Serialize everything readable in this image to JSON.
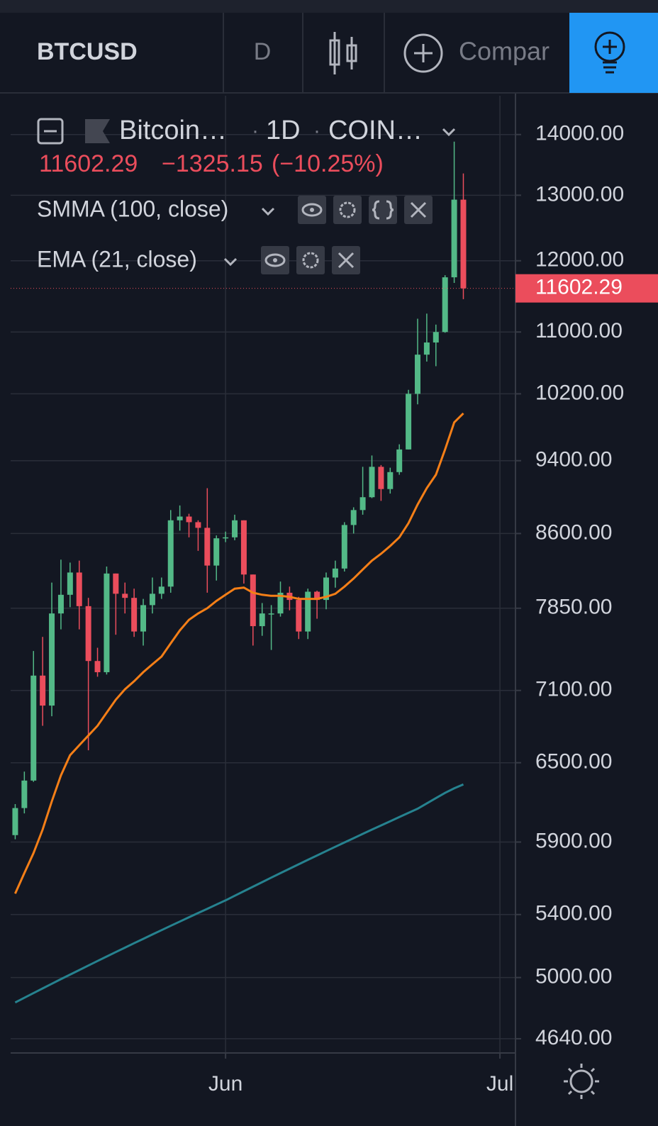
{
  "toolbar": {
    "symbol": "BTCUSD",
    "interval": "D",
    "compare": "Compar"
  },
  "legend": {
    "name": "Bitcoin…",
    "interval": "1D",
    "exchange": "COIN…",
    "change": "−1325.15",
    "change_pct": "(−10.25%)"
  },
  "chart_data": {
    "type": "candlestick",
    "open": [
      5950,
      6150,
      6360,
      7230,
      6970,
      7800,
      7980,
      8200,
      7870,
      7360,
      7260,
      8190,
      7990,
      7950,
      7630,
      7880,
      7990,
      8060,
      8740,
      8780,
      8720,
      8660,
      8270,
      8550,
      8560,
      8740,
      8180,
      7680,
      7800,
      7800,
      8000,
      7930,
      7630,
      8010,
      7930,
      8150,
      8240,
      8690,
      8850,
      8990,
      9330,
      9080,
      9270,
      9530,
      10200,
      10700,
      10860,
      11000,
      11760,
      12930
    ],
    "high": [
      6180,
      6430,
      7450,
      7580,
      8100,
      8330,
      8300,
      8320,
      7950,
      7480,
      8260,
      8190,
      8100,
      8040,
      7940,
      8150,
      8150,
      8850,
      8900,
      8810,
      8740,
      9090,
      8580,
      8620,
      8800,
      8740,
      8180,
      7900,
      7880,
      8110,
      8060,
      7960,
      8040,
      8020,
      8200,
      8320,
      8720,
      8880,
      9330,
      9460,
      9350,
      9320,
      9590,
      10250,
      11180,
      11250,
      11100,
      11790,
      13880,
      13350
    ],
    "low": [
      5920,
      6110,
      6350,
      6800,
      6880,
      7650,
      7860,
      7650,
      6600,
      7220,
      7240,
      7600,
      7800,
      7580,
      7500,
      7800,
      7940,
      8000,
      8630,
      8560,
      8420,
      8000,
      8120,
      8510,
      8530,
      8090,
      7500,
      7590,
      7460,
      7770,
      7830,
      7560,
      7560,
      7750,
      7840,
      8050,
      8210,
      8600,
      8800,
      8980,
      8950,
      9030,
      9240,
      9530,
      10070,
      10610,
      10550,
      10990,
      11680,
      11450
    ],
    "close": [
      6150,
      6360,
      7230,
      6970,
      7800,
      7980,
      8200,
      7870,
      7360,
      7260,
      8190,
      7990,
      7950,
      7630,
      7880,
      7990,
      8060,
      8740,
      8780,
      8720,
      8660,
      8270,
      8550,
      8560,
      8740,
      8180,
      7680,
      7800,
      7800,
      8000,
      7930,
      7630,
      8010,
      7930,
      8150,
      8240,
      8690,
      8850,
      8990,
      9330,
      9080,
      9270,
      9530,
      10200,
      10700,
      10860,
      11000,
      11760,
      12930,
      11602.29
    ],
    "up_color": "#53b987",
    "down_color": "#eb4d5c",
    "series": [
      {
        "name": "SMMA (100, close)",
        "color": "#26828f",
        "values": [
          4850,
          4878,
          4906,
          4934,
          4962,
          4990,
          5018,
          5046,
          5074,
          5102,
          5130,
          5158,
          5186,
          5214,
          5242,
          5270,
          5298,
          5326,
          5354,
          5382,
          5410,
          5438,
          5466,
          5494,
          5525,
          5556,
          5587,
          5618,
          5649,
          5680,
          5711,
          5742,
          5773,
          5804,
          5835,
          5866,
          5897,
          5928,
          5959,
          5990,
          6021,
          6052,
          6083,
          6114,
          6145,
          6185,
          6225,
          6265,
          6300,
          6330
        ]
      },
      {
        "name": "EMA (21, close)",
        "color": "#f57f17",
        "values": [
          5540,
          5680,
          5820,
          5990,
          6200,
          6400,
          6560,
          6640,
          6720,
          6800,
          6910,
          7020,
          7110,
          7180,
          7260,
          7330,
          7400,
          7520,
          7640,
          7740,
          7800,
          7850,
          7920,
          7980,
          8040,
          8050,
          8000,
          7980,
          7970,
          7970,
          7960,
          7940,
          7940,
          7940,
          7960,
          7990,
          8060,
          8140,
          8230,
          8320,
          8390,
          8470,
          8560,
          8710,
          8910,
          9090,
          9240,
          9530,
          9850,
          9960
        ]
      }
    ],
    "xlim": [
      -0.5,
      54.7
    ],
    "xticks": [
      {
        "value": 23,
        "label": "Jun"
      },
      {
        "value": 53,
        "label": "Jul"
      }
    ],
    "ylim": [
      4560,
      14680
    ],
    "yticks": [
      {
        "value": 4640,
        "label": "4640.00"
      },
      {
        "value": 5000,
        "label": "5000.00"
      },
      {
        "value": 5400,
        "label": "5400.00"
      },
      {
        "value": 5900,
        "label": "5900.00"
      },
      {
        "value": 6500,
        "label": "6500.00"
      },
      {
        "value": 7100,
        "label": "7100.00"
      },
      {
        "value": 7850,
        "label": "7850.00"
      },
      {
        "value": 8600,
        "label": "8600.00"
      },
      {
        "value": 9400,
        "label": "9400.00"
      },
      {
        "value": 10200,
        "label": "10200.00"
      },
      {
        "value": 11000,
        "label": "11000.00"
      },
      {
        "value": 12000,
        "label": "12000.00"
      },
      {
        "value": 13000,
        "label": "13000.00"
      },
      {
        "value": 14000,
        "label": "14000.00"
      }
    ],
    "log_scale": true,
    "grid": true
  }
}
